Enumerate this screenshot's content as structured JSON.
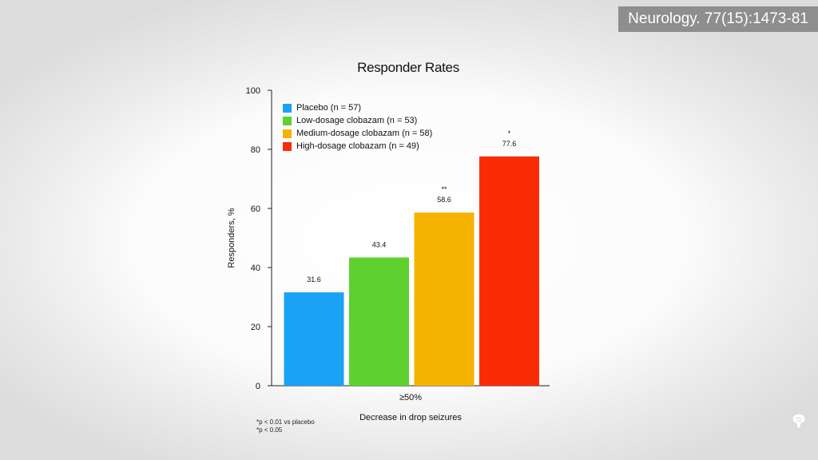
{
  "citation": "Neurology. 77(15):1473-81",
  "footnotes": [
    "*p < 0.01 vs placebo",
    "*p < 0.05"
  ],
  "chart_data": {
    "type": "bar",
    "title": "Responder Rates",
    "xlabel": "Decrease in drop seizures",
    "ylabel": "Responders, %",
    "categories": [
      "≥50%"
    ],
    "ylim": [
      0,
      100
    ],
    "yticks": [
      0,
      20,
      40,
      60,
      80,
      100
    ],
    "grid": false,
    "legend_position": "top-left",
    "series": [
      {
        "name": "Placebo (n = 57)",
        "values": [
          31.6
        ],
        "label": "31.6",
        "annotation": "",
        "color": "#1aa3f5"
      },
      {
        "name": "Low-dosage clobazam (n = 53)",
        "values": [
          43.4
        ],
        "label": "43.4",
        "annotation": "",
        "color": "#5ed12f"
      },
      {
        "name": "Medium-dosage clobazam (n = 58)",
        "values": [
          58.6
        ],
        "label": "58.6",
        "annotation": "**",
        "color": "#f5b300"
      },
      {
        "name": "High-dosage clobazam (n = 49)",
        "values": [
          77.6
        ],
        "label": "77.6",
        "annotation": "*",
        "color": "#fa2c05"
      }
    ]
  }
}
